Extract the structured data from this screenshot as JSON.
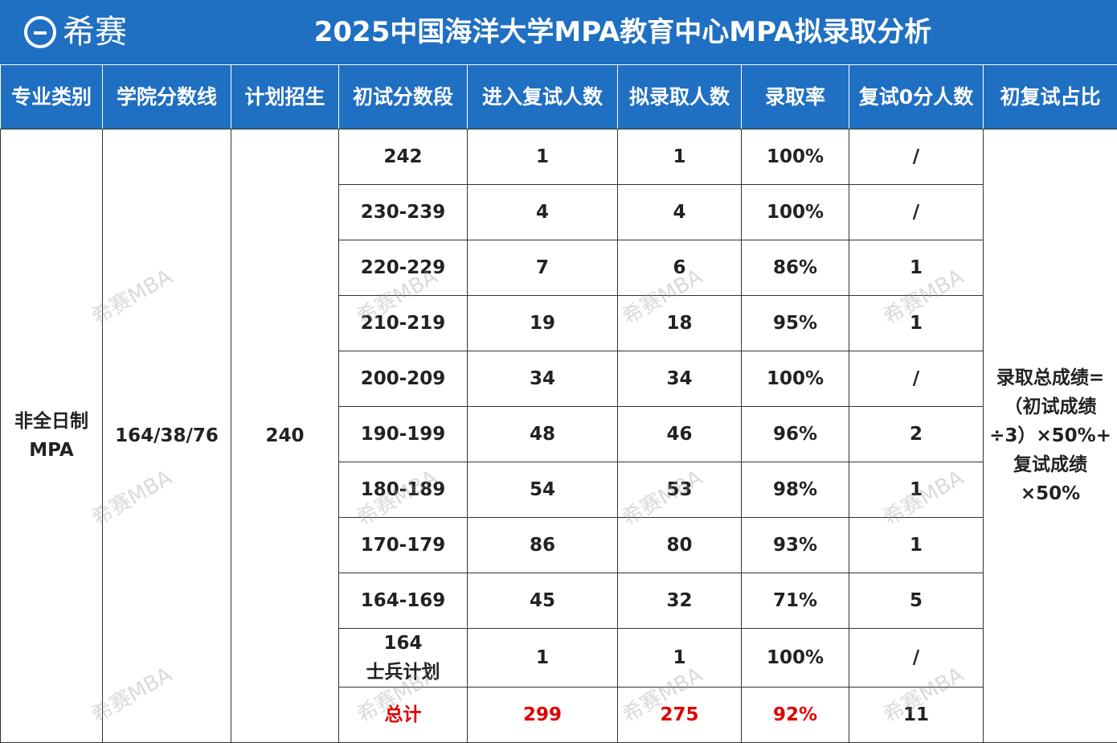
{
  "header": {
    "logo": "希赛",
    "title": "2025中国海洋大学MPA教育中心MPA拟录取分析"
  },
  "watermark": "希赛MBA",
  "table": {
    "columns": [
      "专业类别",
      "学院分数线",
      "计划招生",
      "初试分数段",
      "进入复试人数",
      "拟录取人数",
      "录取率",
      "复试0分人数",
      "初复试占比"
    ],
    "category": [
      "非全日制",
      "MPA"
    ],
    "cutoff": "164/38/76",
    "plan": "240",
    "rows": [
      [
        [
          "242"
        ],
        "1",
        "1",
        "100%",
        "/"
      ],
      [
        [
          "230-239"
        ],
        "4",
        "4",
        "100%",
        "/"
      ],
      [
        [
          "220-229"
        ],
        "7",
        "6",
        "86%",
        "1"
      ],
      [
        [
          "210-219"
        ],
        "19",
        "18",
        "95%",
        "1"
      ],
      [
        [
          "200-209"
        ],
        "34",
        "34",
        "100%",
        "/"
      ],
      [
        [
          "190-199"
        ],
        "48",
        "46",
        "96%",
        "2"
      ],
      [
        [
          "180-189"
        ],
        "54",
        "53",
        "98%",
        "1"
      ],
      [
        [
          "170-179"
        ],
        "86",
        "80",
        "93%",
        "1"
      ],
      [
        [
          "164-169"
        ],
        "45",
        "32",
        "71%",
        "5"
      ],
      [
        [
          "164",
          "士兵计划"
        ],
        "1",
        "1",
        "100%",
        "/"
      ]
    ],
    "total": [
      "总计",
      "299",
      "275",
      "92%",
      "11"
    ],
    "note": [
      "录取总成绩=",
      "（初试成绩",
      "÷3）×50%+",
      "复试成绩",
      "×50%"
    ]
  }
}
